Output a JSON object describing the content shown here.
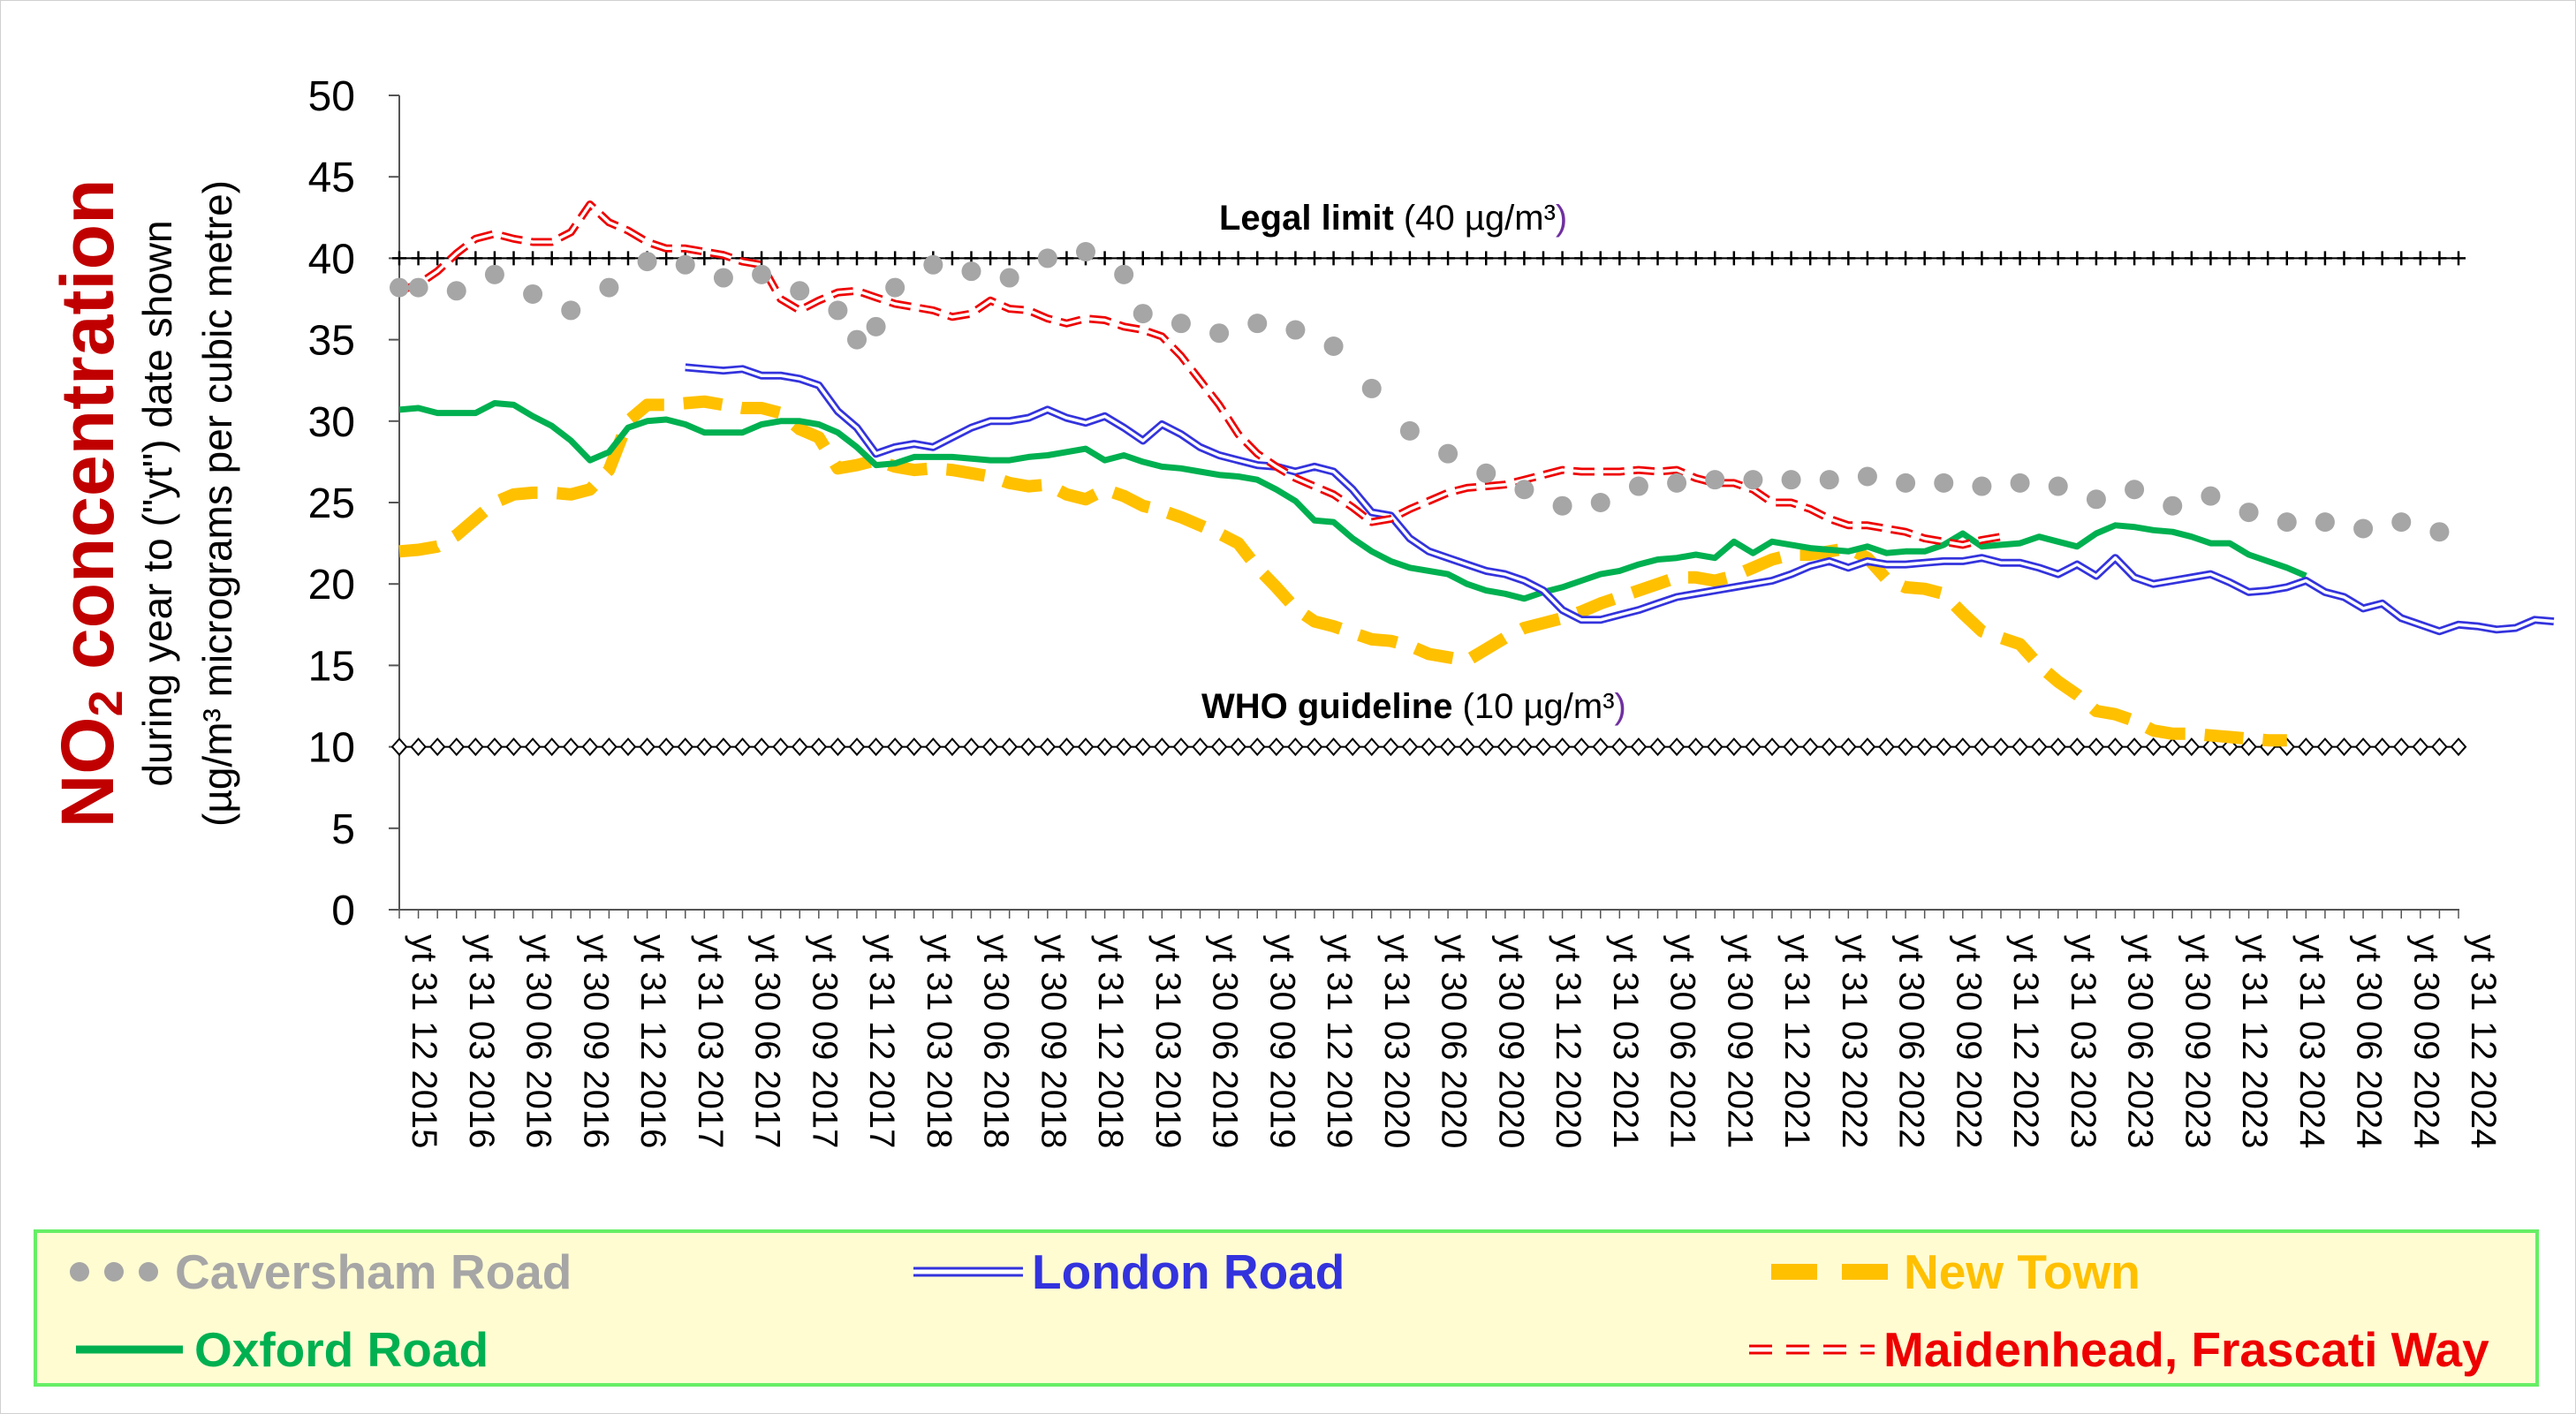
{
  "chart_data": {
    "type": "line",
    "ylabel_main": "NO",
    "ylabel_sub": "2",
    "ylabel_main_rest": " concentration",
    "ylabel_line1": "during year to (\"yt\") date shown",
    "ylabel_line2": "(µg/m³ micrograms per cubic metre)",
    "ylim": [
      0,
      50
    ],
    "yticks": [
      0,
      5,
      10,
      15,
      20,
      25,
      30,
      35,
      40,
      45,
      50
    ],
    "x_tick_labels": [
      "yt 31 12 2015",
      "yt 31 03 2016",
      "yt 30 06 2016",
      "yt 30 09 2016",
      "yt 31 12 2016",
      "yt 31 03 2017",
      "yt 30 06 2017",
      "yt 30 09 2017",
      "yt 31 12 2017",
      "yt 31 03 2018",
      "yt 30 06 2018",
      "yt 30 09 2018",
      "yt 31 12 2018",
      "yt 31 03 2019",
      "yt 30 06 2019",
      "yt 30 09 2019",
      "yt 31 12 2019",
      "yt 31 03 2020",
      "yt 30 06 2020",
      "yt 30 09 2020",
      "yt 31 12 2020",
      "yt 31 03 2021",
      "yt 30 06 2021",
      "yt 30 09 2021",
      "yt 31 12 2021",
      "yt 31 03 2022",
      "yt 30 06 2022",
      "yt 30 09 2022",
      "yt 31 12 2022",
      "yt 31 03 2023",
      "yt 30 06 2023",
      "yt 30 09 2023",
      "yt 31 12 2023",
      "yt 31 03 2024",
      "yt 30 06 2024",
      "yt 30 09 2024",
      "yt 31 12 2024"
    ],
    "x_months": "monthly data from yt 31 12 2015 to yt 31 12 2024",
    "reference_lines": [
      {
        "value": 40,
        "label_bold": "Legal limit",
        "label_rest": " (40 µg/m³",
        "label_close": ")",
        "marker": "cross"
      },
      {
        "value": 10,
        "label_bold": "WHO guideline",
        "label_rest": " (10 µg/m³",
        "label_close": ")",
        "marker": "diamond"
      }
    ],
    "grid": false,
    "legend_position": "bottom",
    "series": [
      {
        "name": "Caversham Road",
        "color": "#a6a6a6",
        "style": "dots",
        "start": 0,
        "values": [
          38.2,
          38.2,
          null,
          38.0,
          null,
          39.0,
          null,
          37.8,
          null,
          36.8,
          null,
          38.2,
          null,
          39.8,
          null,
          39.6,
          null,
          38.8,
          null,
          39.0,
          null,
          38.0,
          null,
          36.8,
          35.0,
          35.8,
          38.2,
          null,
          39.6,
          null,
          39.2,
          null,
          38.8,
          null,
          40.0,
          null,
          40.4,
          null,
          39.0,
          36.6,
          null,
          36.0,
          null,
          35.4,
          null,
          36.0,
          null,
          35.6,
          null,
          34.6,
          null,
          32.0,
          null,
          29.4,
          null,
          28.0,
          null,
          26.8,
          null,
          25.8,
          null,
          24.8,
          null,
          25.0,
          null,
          26.0,
          null,
          26.2,
          null,
          26.4,
          null,
          26.4,
          null,
          26.4,
          null,
          26.4,
          null,
          26.6,
          null,
          26.2,
          null,
          26.2,
          null,
          26.0,
          null,
          26.2,
          null,
          26.0,
          null,
          25.2,
          null,
          25.8,
          null,
          24.8,
          null,
          25.4,
          null,
          24.4,
          null,
          23.8,
          null,
          23.8,
          null,
          23.4,
          null,
          23.8,
          null,
          23.2,
          null
        ]
      },
      {
        "name": "London Road",
        "color": "#3333dd",
        "style": "double",
        "start": 15,
        "values": [
          33.3,
          33.2,
          33.1,
          33.2,
          32.8,
          32.8,
          32.6,
          32.2,
          30.6,
          29.6,
          28.0,
          28.4,
          28.6,
          28.4,
          29.0,
          29.6,
          30.0,
          30.0,
          30.2,
          30.7,
          30.2,
          29.9,
          30.3,
          29.6,
          28.8,
          29.8,
          29.2,
          28.4,
          27.9,
          27.6,
          27.3,
          27.2,
          26.9,
          27.2,
          26.9,
          25.8,
          24.4,
          24.2,
          22.8,
          22.0,
          21.6,
          21.2,
          20.8,
          20.6,
          20.2,
          19.6,
          18.4,
          17.8,
          17.8,
          18.1,
          18.4,
          18.8,
          19.2,
          19.4,
          19.6,
          19.8,
          20.0,
          20.2,
          20.6,
          21.1,
          21.4,
          21.0,
          21.4,
          21.2,
          21.2,
          21.3,
          21.4,
          21.4,
          21.6,
          21.3,
          21.3,
          21.0,
          20.6,
          21.2,
          20.5,
          21.6,
          20.4,
          20.0,
          20.2,
          20.4,
          20.6,
          20.1,
          19.5,
          19.6,
          19.8,
          20.2,
          19.5,
          19.2,
          18.5,
          18.8,
          17.9,
          17.5,
          17.1,
          17.5,
          17.4,
          17.2,
          17.3,
          17.8,
          17.7
        ]
      },
      {
        "name": "New Town",
        "color": "#ffc000",
        "style": "dash",
        "start": 0,
        "values": [
          22.0,
          22.1,
          22.3,
          23.0,
          24.0,
          25.0,
          25.5,
          25.6,
          25.6,
          25.5,
          25.8,
          27.0,
          30.0,
          31.0,
          31.0,
          31.1,
          31.2,
          31.0,
          30.8,
          30.8,
          30.5,
          29.5,
          29.0,
          27.1,
          27.3,
          27.6,
          27.2,
          27.0,
          27.1,
          27.0,
          26.8,
          26.6,
          26.2,
          26.0,
          26.1,
          25.5,
          25.2,
          25.8,
          25.4,
          24.8,
          24.5,
          24.1,
          23.6,
          23.1,
          22.5,
          21.0,
          19.8,
          18.5,
          17.7,
          17.4,
          17.0,
          16.6,
          16.5,
          16.2,
          15.7,
          15.5,
          15.3,
          16.0,
          16.7,
          17.3,
          17.6,
          17.9,
          18.3,
          18.8,
          19.2,
          19.6,
          20.0,
          20.4,
          20.4,
          20.2,
          20.5,
          21.0,
          21.5,
          21.8,
          21.8,
          22.0,
          22.2,
          21.6,
          20.3,
          19.8,
          19.7,
          19.4,
          18.2,
          17.1,
          16.7,
          16.3,
          15.0,
          14.0,
          13.2,
          12.2,
          12.0,
          11.6,
          11.0,
          10.8,
          10.8,
          10.7,
          10.6,
          10.5,
          10.4,
          10.4
        ]
      },
      {
        "name": "Oxford Road",
        "color": "#00b050",
        "style": "solid",
        "start": 0,
        "values": [
          30.7,
          30.8,
          30.5,
          30.5,
          30.5,
          31.1,
          31.0,
          30.3,
          29.7,
          28.8,
          27.6,
          28.1,
          29.6,
          30.0,
          30.1,
          29.8,
          29.3,
          29.3,
          29.3,
          29.8,
          30.0,
          30.0,
          29.8,
          29.3,
          28.4,
          27.3,
          27.4,
          27.8,
          27.8,
          27.8,
          27.7,
          27.6,
          27.6,
          27.8,
          27.9,
          28.1,
          28.3,
          27.6,
          27.9,
          27.5,
          27.2,
          27.1,
          26.9,
          26.7,
          26.6,
          26.4,
          25.8,
          25.1,
          23.9,
          23.8,
          22.8,
          22.0,
          21.4,
          21.0,
          20.8,
          20.6,
          20.0,
          19.6,
          19.4,
          19.1,
          19.5,
          19.8,
          20.2,
          20.6,
          20.8,
          21.2,
          21.5,
          21.6,
          21.8,
          21.6,
          22.6,
          21.9,
          22.6,
          22.4,
          22.2,
          22.1,
          22.0,
          22.3,
          21.9,
          22.0,
          22.0,
          22.4,
          23.1,
          22.3,
          22.4,
          22.5,
          22.9,
          22.6,
          22.3,
          23.1,
          23.6,
          23.5,
          23.3,
          23.2,
          22.9,
          22.5,
          22.5,
          21.8,
          21.4,
          21.0,
          20.5
        ]
      },
      {
        "name": "Maidenhead, Frascati Way",
        "color": "#ee0000",
        "style": "hollow-dash",
        "start": 0,
        "values": [
          38.0,
          38.4,
          39.2,
          40.3,
          41.2,
          41.5,
          41.2,
          41.0,
          41.0,
          41.6,
          43.3,
          42.2,
          41.7,
          41.0,
          40.6,
          40.6,
          40.4,
          40.2,
          39.8,
          39.6,
          37.5,
          36.8,
          37.4,
          37.9,
          38.0,
          37.6,
          37.2,
          37.0,
          36.8,
          36.4,
          36.6,
          37.4,
          36.9,
          36.8,
          36.3,
          36.0,
          36.3,
          36.2,
          35.8,
          35.6,
          35.2,
          34.0,
          32.5,
          31.0,
          29.2,
          28.0,
          27.2,
          26.5,
          26.0,
          25.5,
          24.7,
          23.8,
          24.0,
          24.6,
          25.1,
          25.6,
          25.9,
          26.0,
          26.1,
          26.4,
          26.7,
          27.0,
          26.9,
          26.9,
          26.9,
          27.0,
          26.9,
          27.0,
          26.5,
          26.2,
          26.2,
          25.8,
          25.0,
          25.0,
          24.6,
          24.0,
          23.6,
          23.6,
          23.4,
          23.2,
          22.8,
          22.6,
          22.4,
          22.7,
          22.9
        ]
      }
    ]
  },
  "legend": {
    "items": [
      {
        "label": "Caversham Road"
      },
      {
        "label": "London Road"
      },
      {
        "label": "New Town"
      },
      {
        "label": "Oxford Road"
      },
      {
        "label": "Maidenhead, Frascati Way"
      }
    ]
  }
}
